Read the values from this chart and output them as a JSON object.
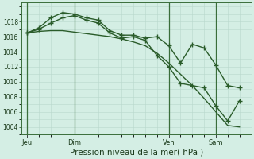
{
  "background_color": "#d4eee4",
  "grid_color": "#b8d8cc",
  "line_color": "#2a5c2a",
  "xlabel": "Pression niveau de la mer( hPa )",
  "xlabel_fontsize": 7.5,
  "ylim": [
    1003.0,
    1020.5
  ],
  "yticks": [
    1004,
    1006,
    1008,
    1010,
    1012,
    1014,
    1016,
    1018
  ],
  "xtick_labels": [
    "Jeu",
    "Dim",
    "Ven",
    "Sam"
  ],
  "xtick_positions": [
    0,
    48,
    144,
    192
  ],
  "vlines": [
    0,
    48,
    144,
    192
  ],
  "xlim": [
    -6,
    228
  ],
  "series1_x": [
    0,
    12,
    24,
    36,
    48,
    60,
    72,
    84,
    96,
    108,
    120,
    132,
    144,
    156,
    168,
    180,
    192,
    204,
    216
  ],
  "series1_y": [
    1016.5,
    1017.2,
    1018.5,
    1019.2,
    1019.0,
    1018.5,
    1018.2,
    1016.8,
    1016.2,
    1016.2,
    1015.8,
    1016.0,
    1014.8,
    1012.5,
    1015.0,
    1014.5,
    1012.2,
    1009.5,
    1009.2
  ],
  "series2_x": [
    0,
    12,
    24,
    36,
    48,
    60,
    72,
    84,
    96,
    108,
    120,
    132,
    144,
    156,
    168,
    180,
    192,
    204,
    216
  ],
  "series2_y": [
    1016.5,
    1017.0,
    1017.8,
    1018.5,
    1018.8,
    1018.2,
    1017.8,
    1016.5,
    1015.8,
    1016.0,
    1015.5,
    1013.5,
    1012.0,
    1009.8,
    1009.5,
    1009.2,
    1006.8,
    1004.8,
    1007.5
  ],
  "series3_x": [
    0,
    12,
    24,
    36,
    48,
    60,
    72,
    84,
    96,
    108,
    120,
    132,
    144,
    156,
    168,
    180,
    192,
    204,
    216
  ],
  "series3_y": [
    1016.5,
    1016.7,
    1016.8,
    1016.8,
    1016.6,
    1016.4,
    1016.2,
    1016.0,
    1015.7,
    1015.3,
    1014.8,
    1013.8,
    1012.5,
    1011.0,
    1009.5,
    1007.8,
    1006.0,
    1004.2,
    1004.0
  ]
}
